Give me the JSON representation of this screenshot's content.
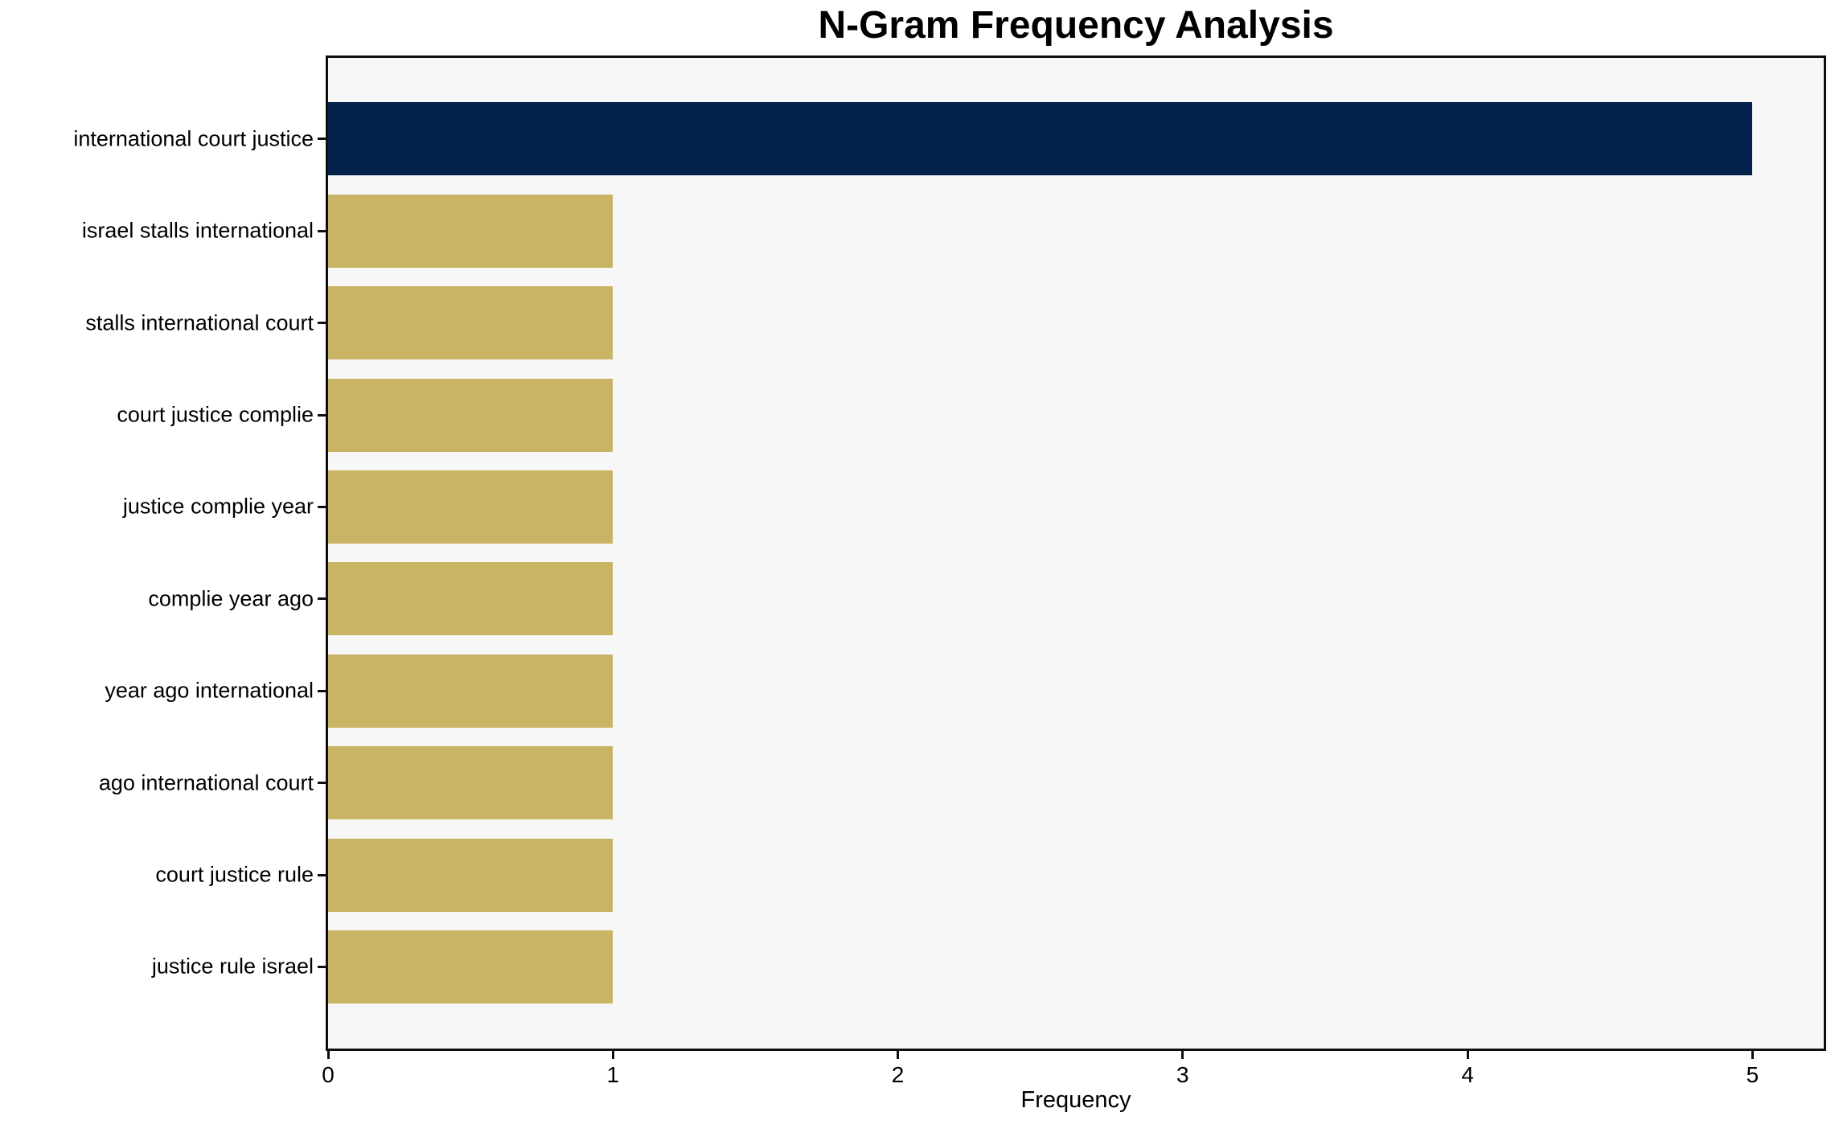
{
  "chart_data": {
    "type": "bar",
    "orientation": "horizontal",
    "title": "N-Gram Frequency Analysis",
    "xlabel": "Frequency",
    "ylabel": "",
    "categories": [
      "international court justice",
      "israel stalls international",
      "stalls international court",
      "court justice complie",
      "justice complie year",
      "complie year ago",
      "year ago international",
      "ago international court",
      "court justice rule",
      "justice rule israel"
    ],
    "values": [
      5,
      1,
      1,
      1,
      1,
      1,
      1,
      1,
      1,
      1
    ],
    "xticks": [
      0,
      1,
      2,
      3,
      4,
      5
    ],
    "xlim": [
      0,
      5.25
    ],
    "grid": false,
    "legend": null,
    "bar_colors": [
      "#03224c",
      "#c8b464",
      "#c8b464",
      "#c8b464",
      "#c8b464",
      "#c8b464",
      "#c8b464",
      "#c8b464",
      "#c8b464",
      "#c8b464"
    ],
    "colors": {
      "highlight": "#03224c",
      "default": "#c8b464",
      "plot_background": "#f7f7f7",
      "axis": "#0f0f0f",
      "text": "#000000"
    }
  }
}
